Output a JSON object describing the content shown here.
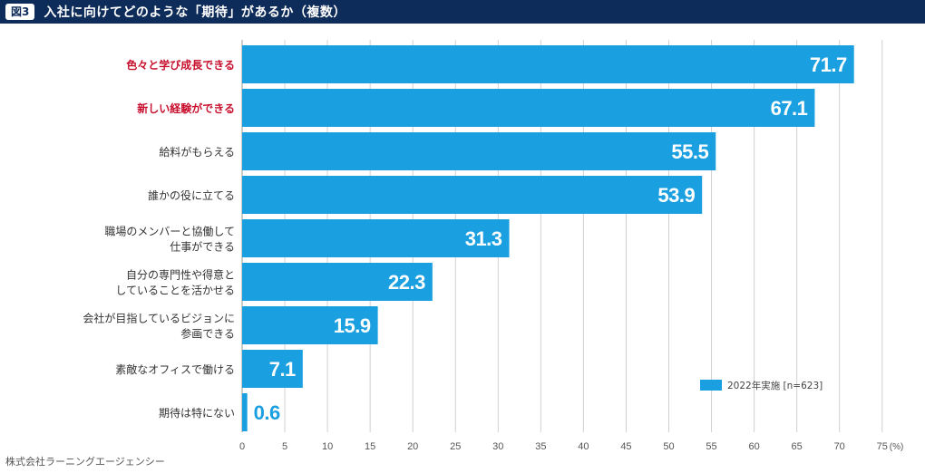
{
  "header": {
    "figure_label": "図3",
    "title": "入社に向けてどのような「期待」があるか（複数）"
  },
  "footer": {
    "source": "株式会社ラーニングエージェンシー"
  },
  "chart_data": {
    "type": "bar",
    "orientation": "horizontal",
    "title": "入社に向けてどのような「期待」があるか（複数）",
    "categories": [
      [
        "色々と学び成長できる"
      ],
      [
        "新しい経験ができる"
      ],
      [
        "給料がもらえる"
      ],
      [
        "誰かの役に立てる"
      ],
      [
        "職場のメンバーと協働して",
        "仕事ができる"
      ],
      [
        "自分の専門性や得意と",
        "していることを活かせる"
      ],
      [
        "会社が目指しているビジョンに",
        "参画できる"
      ],
      [
        "素敵なオフィスで働ける"
      ],
      [
        "期待は特にない"
      ]
    ],
    "highlighted_categories": [
      0,
      1
    ],
    "series": [
      {
        "name": "2022年実施 [n=623]",
        "values": [
          71.7,
          67.1,
          55.5,
          53.9,
          31.3,
          22.3,
          15.9,
          7.1,
          0.6
        ]
      }
    ],
    "value_labels": [
      "71.7",
      "67.1",
      "55.5",
      "53.9",
      "31.3",
      "22.3",
      "15.9",
      "7.1",
      "0.6"
    ],
    "xlim": [
      0,
      75
    ],
    "xticks": [
      "0",
      "5",
      "10",
      "15",
      "20",
      "25",
      "30",
      "35",
      "40",
      "45",
      "50",
      "55",
      "60",
      "65",
      "70",
      "75"
    ],
    "xunit": "(%)",
    "grid": true,
    "legend": "bottom-right",
    "colors": {
      "bar": "#1a9fe0",
      "highlight_label": "#c8102e",
      "label": "#333333",
      "grid": "#d0d0d0",
      "value_label_inside": "#ffffff",
      "value_label_outside": "#1a9fe0"
    }
  }
}
